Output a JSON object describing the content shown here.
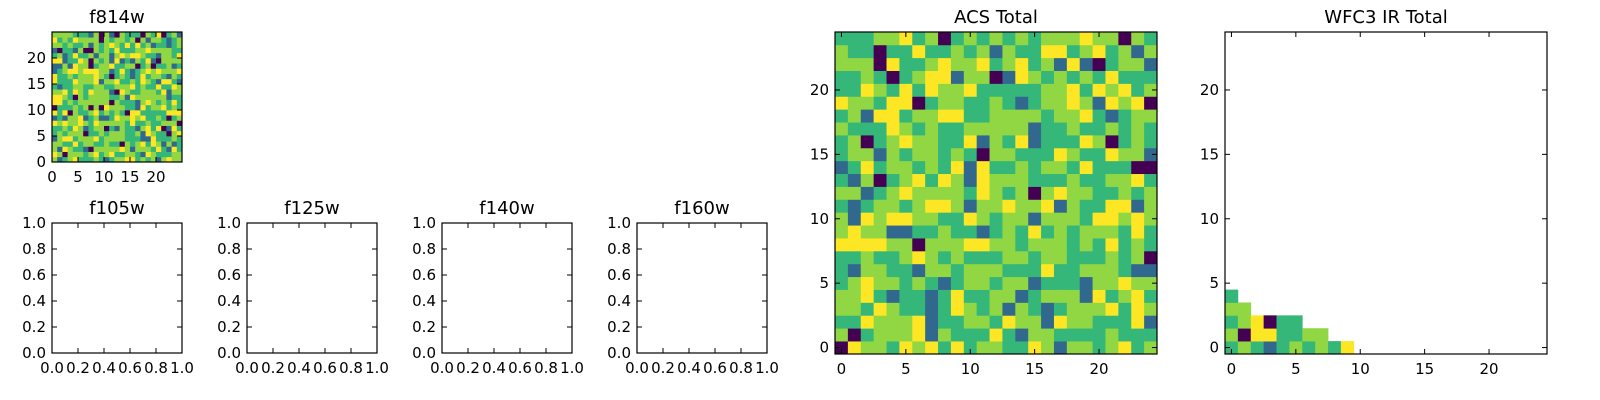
{
  "colormap": [
    "#440154",
    "#31688e",
    "#35b779",
    "#90d743",
    "#fde725"
  ],
  "chart_data": [
    {
      "id": "f814w",
      "type": "heatmap",
      "title": "f814w",
      "xlim": [
        0,
        25
      ],
      "ylim": [
        0,
        25
      ],
      "xticks": [
        0,
        5,
        10,
        15,
        20
      ],
      "yticks": [
        0,
        5,
        10,
        15,
        20
      ],
      "grid_rows": 25,
      "grid_cols": 25,
      "fill": "dense",
      "seed": 814
    },
    {
      "id": "f105w",
      "type": "empty",
      "title": "f105w",
      "xlim": [
        0,
        1
      ],
      "ylim": [
        0,
        1
      ],
      "xticks": [
        "0.0",
        "0.2",
        "0.4",
        "0.6",
        "0.8",
        "1.0"
      ],
      "yticks": [
        "0.0",
        "0.2",
        "0.4",
        "0.6",
        "0.8",
        "1.0"
      ]
    },
    {
      "id": "f125w",
      "type": "empty",
      "title": "f125w",
      "xlim": [
        0,
        1
      ],
      "ylim": [
        0,
        1
      ],
      "xticks": [
        "0.0",
        "0.2",
        "0.4",
        "0.6",
        "0.8",
        "1.0"
      ],
      "yticks": [
        "0.0",
        "0.2",
        "0.4",
        "0.6",
        "0.8",
        "1.0"
      ]
    },
    {
      "id": "f140w",
      "type": "empty",
      "title": "f140w",
      "xlim": [
        0,
        1
      ],
      "ylim": [
        0,
        1
      ],
      "xticks": [
        "0.0",
        "0.2",
        "0.4",
        "0.6",
        "0.8",
        "1.0"
      ],
      "yticks": [
        "0.0",
        "0.2",
        "0.4",
        "0.6",
        "0.8",
        "1.0"
      ]
    },
    {
      "id": "f160w",
      "type": "empty",
      "title": "f160w",
      "xlim": [
        0,
        1
      ],
      "ylim": [
        0,
        1
      ],
      "xticks": [
        "0.0",
        "0.2",
        "0.4",
        "0.6",
        "0.8",
        "1.0"
      ],
      "yticks": [
        "0.0",
        "0.2",
        "0.4",
        "0.6",
        "0.8",
        "1.0"
      ]
    },
    {
      "id": "acs_total",
      "type": "heatmap",
      "title": "ACS Total",
      "xlim": [
        -0.5,
        24.5
      ],
      "ylim": [
        -0.5,
        24.5
      ],
      "xticks": [
        0,
        5,
        10,
        15,
        20
      ],
      "yticks": [
        0,
        5,
        10,
        15,
        20
      ],
      "grid_rows": 25,
      "grid_cols": 25,
      "fill": "dense",
      "seed": 2024
    },
    {
      "id": "wfc3_ir_total",
      "type": "heatmap",
      "title": "WFC3 IR Total",
      "xlim": [
        -0.5,
        24.5
      ],
      "ylim": [
        -0.5,
        24.5
      ],
      "xticks": [
        0,
        5,
        10,
        15,
        20
      ],
      "yticks": [
        0,
        5,
        10,
        15,
        20
      ],
      "grid_rows": 25,
      "grid_cols": 25,
      "fill": "sparse",
      "cells": [
        {
          "x": 0,
          "y": 0,
          "level": 2
        },
        {
          "x": 1,
          "y": 0,
          "level": 3
        },
        {
          "x": 2,
          "y": 0,
          "level": 2
        },
        {
          "x": 3,
          "y": 0,
          "level": 1
        },
        {
          "x": 4,
          "y": 0,
          "level": 2
        },
        {
          "x": 5,
          "y": 0,
          "level": 3
        },
        {
          "x": 6,
          "y": 0,
          "level": 2
        },
        {
          "x": 7,
          "y": 0,
          "level": 3
        },
        {
          "x": 8,
          "y": 0,
          "level": 2
        },
        {
          "x": 9,
          "y": 0,
          "level": 4
        },
        {
          "x": 0,
          "y": 1,
          "level": 3
        },
        {
          "x": 1,
          "y": 1,
          "level": 0
        },
        {
          "x": 2,
          "y": 1,
          "level": 4
        },
        {
          "x": 3,
          "y": 1,
          "level": 4
        },
        {
          "x": 4,
          "y": 1,
          "level": 2
        },
        {
          "x": 5,
          "y": 1,
          "level": 2
        },
        {
          "x": 6,
          "y": 1,
          "level": 3
        },
        {
          "x": 7,
          "y": 1,
          "level": 3
        },
        {
          "x": 0,
          "y": 2,
          "level": 2
        },
        {
          "x": 1,
          "y": 2,
          "level": 3
        },
        {
          "x": 2,
          "y": 2,
          "level": 4
        },
        {
          "x": 3,
          "y": 2,
          "level": 0
        },
        {
          "x": 4,
          "y": 2,
          "level": 2
        },
        {
          "x": 5,
          "y": 2,
          "level": 2
        },
        {
          "x": 0,
          "y": 3,
          "level": 3
        },
        {
          "x": 1,
          "y": 3,
          "level": 3
        },
        {
          "x": 0,
          "y": 4,
          "level": 2
        }
      ]
    }
  ]
}
